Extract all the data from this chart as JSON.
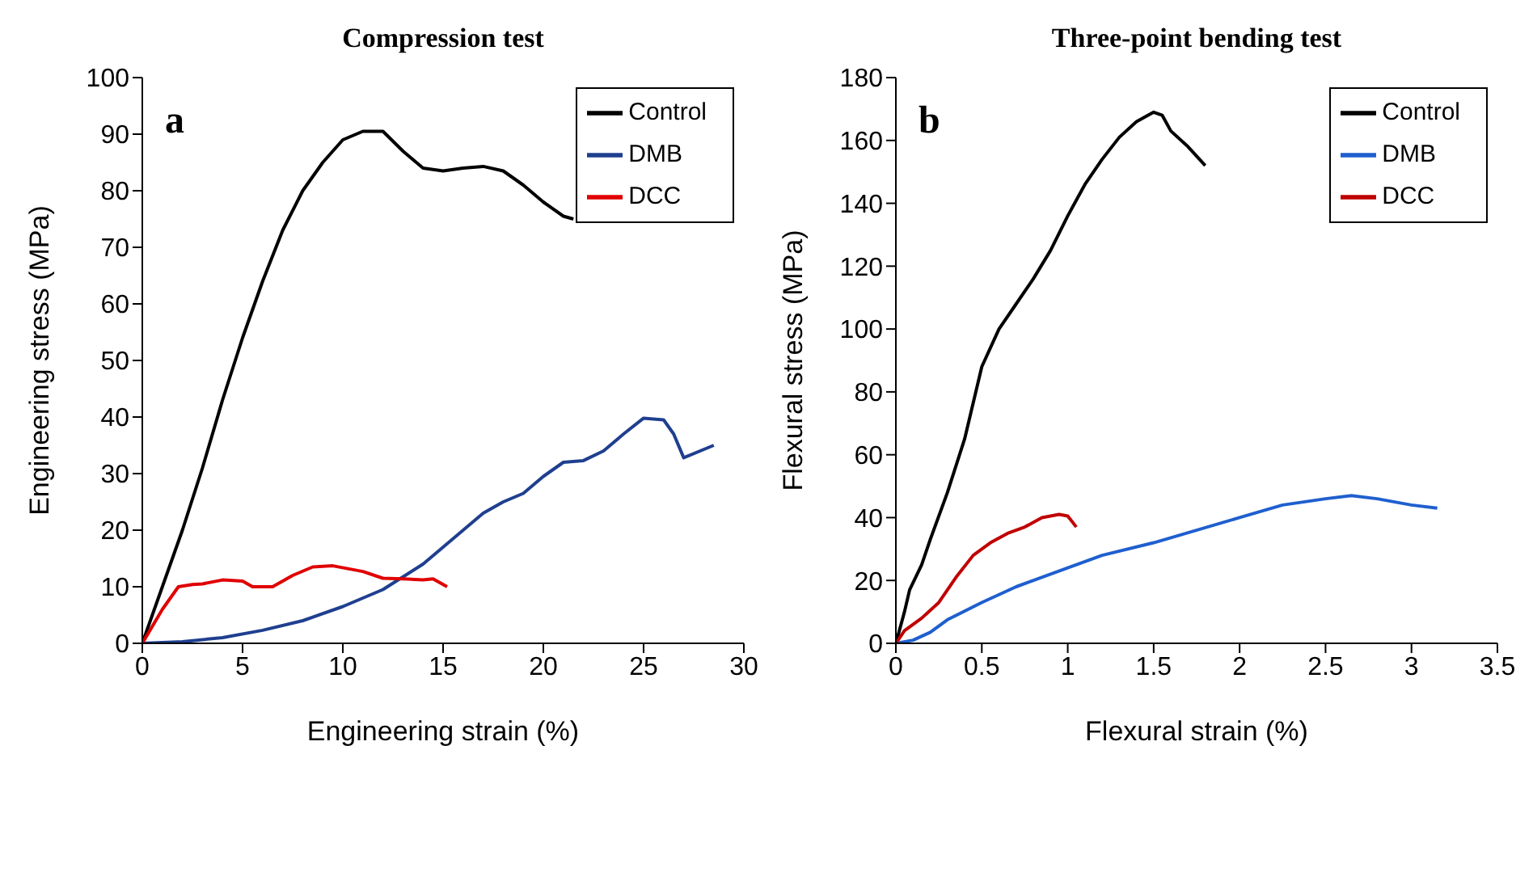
{
  "chart_data": [
    {
      "type": "line",
      "title": "Compression test",
      "xlabel": "Engineering strain (%)",
      "ylabel": "Engineering stress (MPa)",
      "annotations": [
        "a"
      ],
      "xlim": [
        0,
        30
      ],
      "xticks": [
        0,
        5,
        10,
        15,
        20,
        25,
        30
      ],
      "ylim": [
        0,
        100
      ],
      "yticks": [
        0,
        10,
        20,
        30,
        40,
        50,
        60,
        70,
        80,
        90,
        100
      ],
      "legend": "top right",
      "marker": "none",
      "line_style": "solid",
      "series": [
        {
          "name": "Control",
          "color": "#000000",
          "x": [
            0,
            1,
            2,
            3,
            4,
            5,
            6,
            7,
            8,
            9,
            10,
            11,
            12,
            13,
            14,
            15,
            16,
            17,
            18,
            19,
            20,
            21,
            21.5
          ],
          "values": [
            0,
            10,
            20,
            31,
            43,
            54,
            64,
            73,
            80,
            85,
            89,
            90.5,
            90.5,
            87,
            84,
            83.5,
            84,
            84.3,
            83.5,
            81,
            78,
            75.5,
            75
          ]
        },
        {
          "name": "DMB",
          "color": "#1f3f8f",
          "x": [
            0,
            2,
            4,
            6,
            8,
            10,
            12,
            14,
            16,
            17,
            18,
            19,
            20,
            21,
            22,
            23,
            24,
            25,
            26,
            26.5,
            27,
            28.5
          ],
          "values": [
            0,
            0.3,
            1,
            2.3,
            4,
            6.5,
            9.5,
            14,
            20,
            23,
            25,
            26.5,
            29.5,
            32,
            32.3,
            34,
            37,
            39.8,
            39.5,
            37,
            32.8,
            35
          ]
        },
        {
          "name": "DCC",
          "color": "#e00000",
          "x": [
            0,
            1,
            1.8,
            2.5,
            3,
            4,
            5,
            5.5,
            6.5,
            7.5,
            8.5,
            9.5,
            11,
            12,
            13,
            14,
            14.5,
            15.2
          ],
          "values": [
            0,
            6,
            10,
            10.4,
            10.5,
            11.2,
            11,
            10,
            10,
            12,
            13.5,
            13.7,
            12.7,
            11.5,
            11.4,
            11.2,
            11.4,
            10
          ]
        }
      ]
    },
    {
      "type": "line",
      "title": "Three-point bending test",
      "xlabel": "Flexural strain (%)",
      "ylabel": "Flexural stress (MPa)",
      "annotations": [
        "b"
      ],
      "xlim": [
        0,
        3.5
      ],
      "xticks": [
        0,
        0.5,
        1,
        1.5,
        2,
        2.5,
        3,
        3.5
      ],
      "ylim": [
        0,
        180
      ],
      "yticks": [
        0,
        20,
        40,
        60,
        80,
        100,
        120,
        140,
        160,
        180
      ],
      "legend": "top right",
      "marker": "none",
      "line_style": "solid",
      "series": [
        {
          "name": "Control",
          "color": "#000000",
          "x": [
            0,
            0.05,
            0.08,
            0.15,
            0.2,
            0.3,
            0.4,
            0.5,
            0.6,
            0.7,
            0.8,
            0.9,
            1,
            1.1,
            1.2,
            1.3,
            1.4,
            1.5,
            1.55,
            1.6,
            1.7,
            1.8
          ],
          "values": [
            0,
            10,
            17,
            25,
            33,
            48,
            65,
            88,
            100,
            108,
            116,
            125,
            136,
            146,
            154,
            161,
            166,
            169,
            168,
            163,
            158,
            152
          ]
        },
        {
          "name": "DMB",
          "color": "#1f5fcf",
          "x": [
            0,
            0.1,
            0.2,
            0.3,
            0.5,
            0.7,
            1,
            1.2,
            1.5,
            2,
            2.25,
            2.5,
            2.65,
            2.8,
            3,
            3.15
          ],
          "values": [
            0,
            1,
            3.5,
            7.5,
            13,
            18,
            24,
            28,
            32,
            40,
            44,
            46,
            47,
            46,
            44,
            43
          ]
        },
        {
          "name": "DCC",
          "color": "#c00000",
          "x": [
            0,
            0.05,
            0.15,
            0.25,
            0.35,
            0.45,
            0.55,
            0.65,
            0.75,
            0.85,
            0.95,
            1,
            1.05
          ],
          "values": [
            0,
            4,
            8,
            13,
            21,
            28,
            32,
            35,
            37,
            40,
            41,
            40.5,
            37
          ]
        }
      ]
    }
  ]
}
